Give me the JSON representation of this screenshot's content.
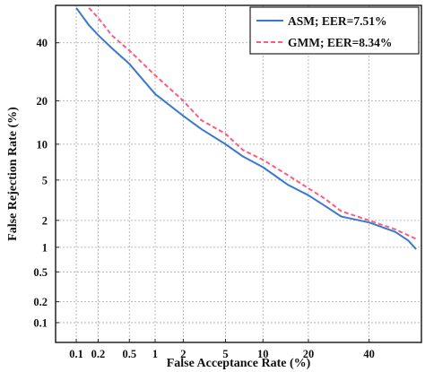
{
  "chart_data": {
    "type": "line",
    "xlabel": "False Acceptance Rate (%)",
    "ylabel": "False Rejection Rate (%)",
    "x_scale": "probit",
    "y_scale": "probit",
    "xlim": [
      0.05,
      60
    ],
    "ylim": [
      0.05,
      55
    ],
    "x_ticks": [
      0.1,
      0.2,
      0.5,
      1,
      2,
      5,
      10,
      20,
      40
    ],
    "y_ticks": [
      0.1,
      0.2,
      0.5,
      1,
      2,
      5,
      10,
      20,
      40
    ],
    "x_tick_labels": [
      "0.1",
      "0.2",
      "0.5",
      "1",
      "2",
      "5",
      "10",
      "20",
      "40"
    ],
    "y_tick_labels": [
      "0.1",
      "0.2",
      "0.5",
      "1",
      "2",
      "5",
      "10",
      "20",
      "40"
    ],
    "grid": true,
    "legend_position": "top-right",
    "series": [
      {
        "name": "ASM; EER=7.51%",
        "color": "#3a78d0",
        "dash": "solid",
        "points": [
          [
            0.1,
            54
          ],
          [
            0.15,
            47
          ],
          [
            0.2,
            43
          ],
          [
            0.3,
            38
          ],
          [
            0.5,
            32
          ],
          [
            1,
            22
          ],
          [
            2,
            16
          ],
          [
            3,
            13
          ],
          [
            5,
            10
          ],
          [
            7,
            8
          ],
          [
            10,
            6.5
          ],
          [
            15,
            4.5
          ],
          [
            20,
            3.6
          ],
          [
            25,
            2.8
          ],
          [
            30,
            2.2
          ],
          [
            40,
            1.9
          ],
          [
            50,
            1.5
          ],
          [
            55,
            1.2
          ],
          [
            58,
            0.95
          ]
        ]
      },
      {
        "name": "GMM; EER=8.34%",
        "color": "#ff5a80",
        "dash": "dashed",
        "points": [
          [
            0.15,
            54
          ],
          [
            0.2,
            50
          ],
          [
            0.3,
            43
          ],
          [
            0.5,
            37
          ],
          [
            1,
            28
          ],
          [
            2,
            20
          ],
          [
            3,
            15
          ],
          [
            5,
            12
          ],
          [
            7,
            9
          ],
          [
            10,
            7.5
          ],
          [
            15,
            5.5
          ],
          [
            20,
            4.2
          ],
          [
            25,
            3.3
          ],
          [
            30,
            2.5
          ],
          [
            40,
            2.0
          ],
          [
            50,
            1.6
          ],
          [
            58,
            1.25
          ]
        ]
      }
    ]
  }
}
